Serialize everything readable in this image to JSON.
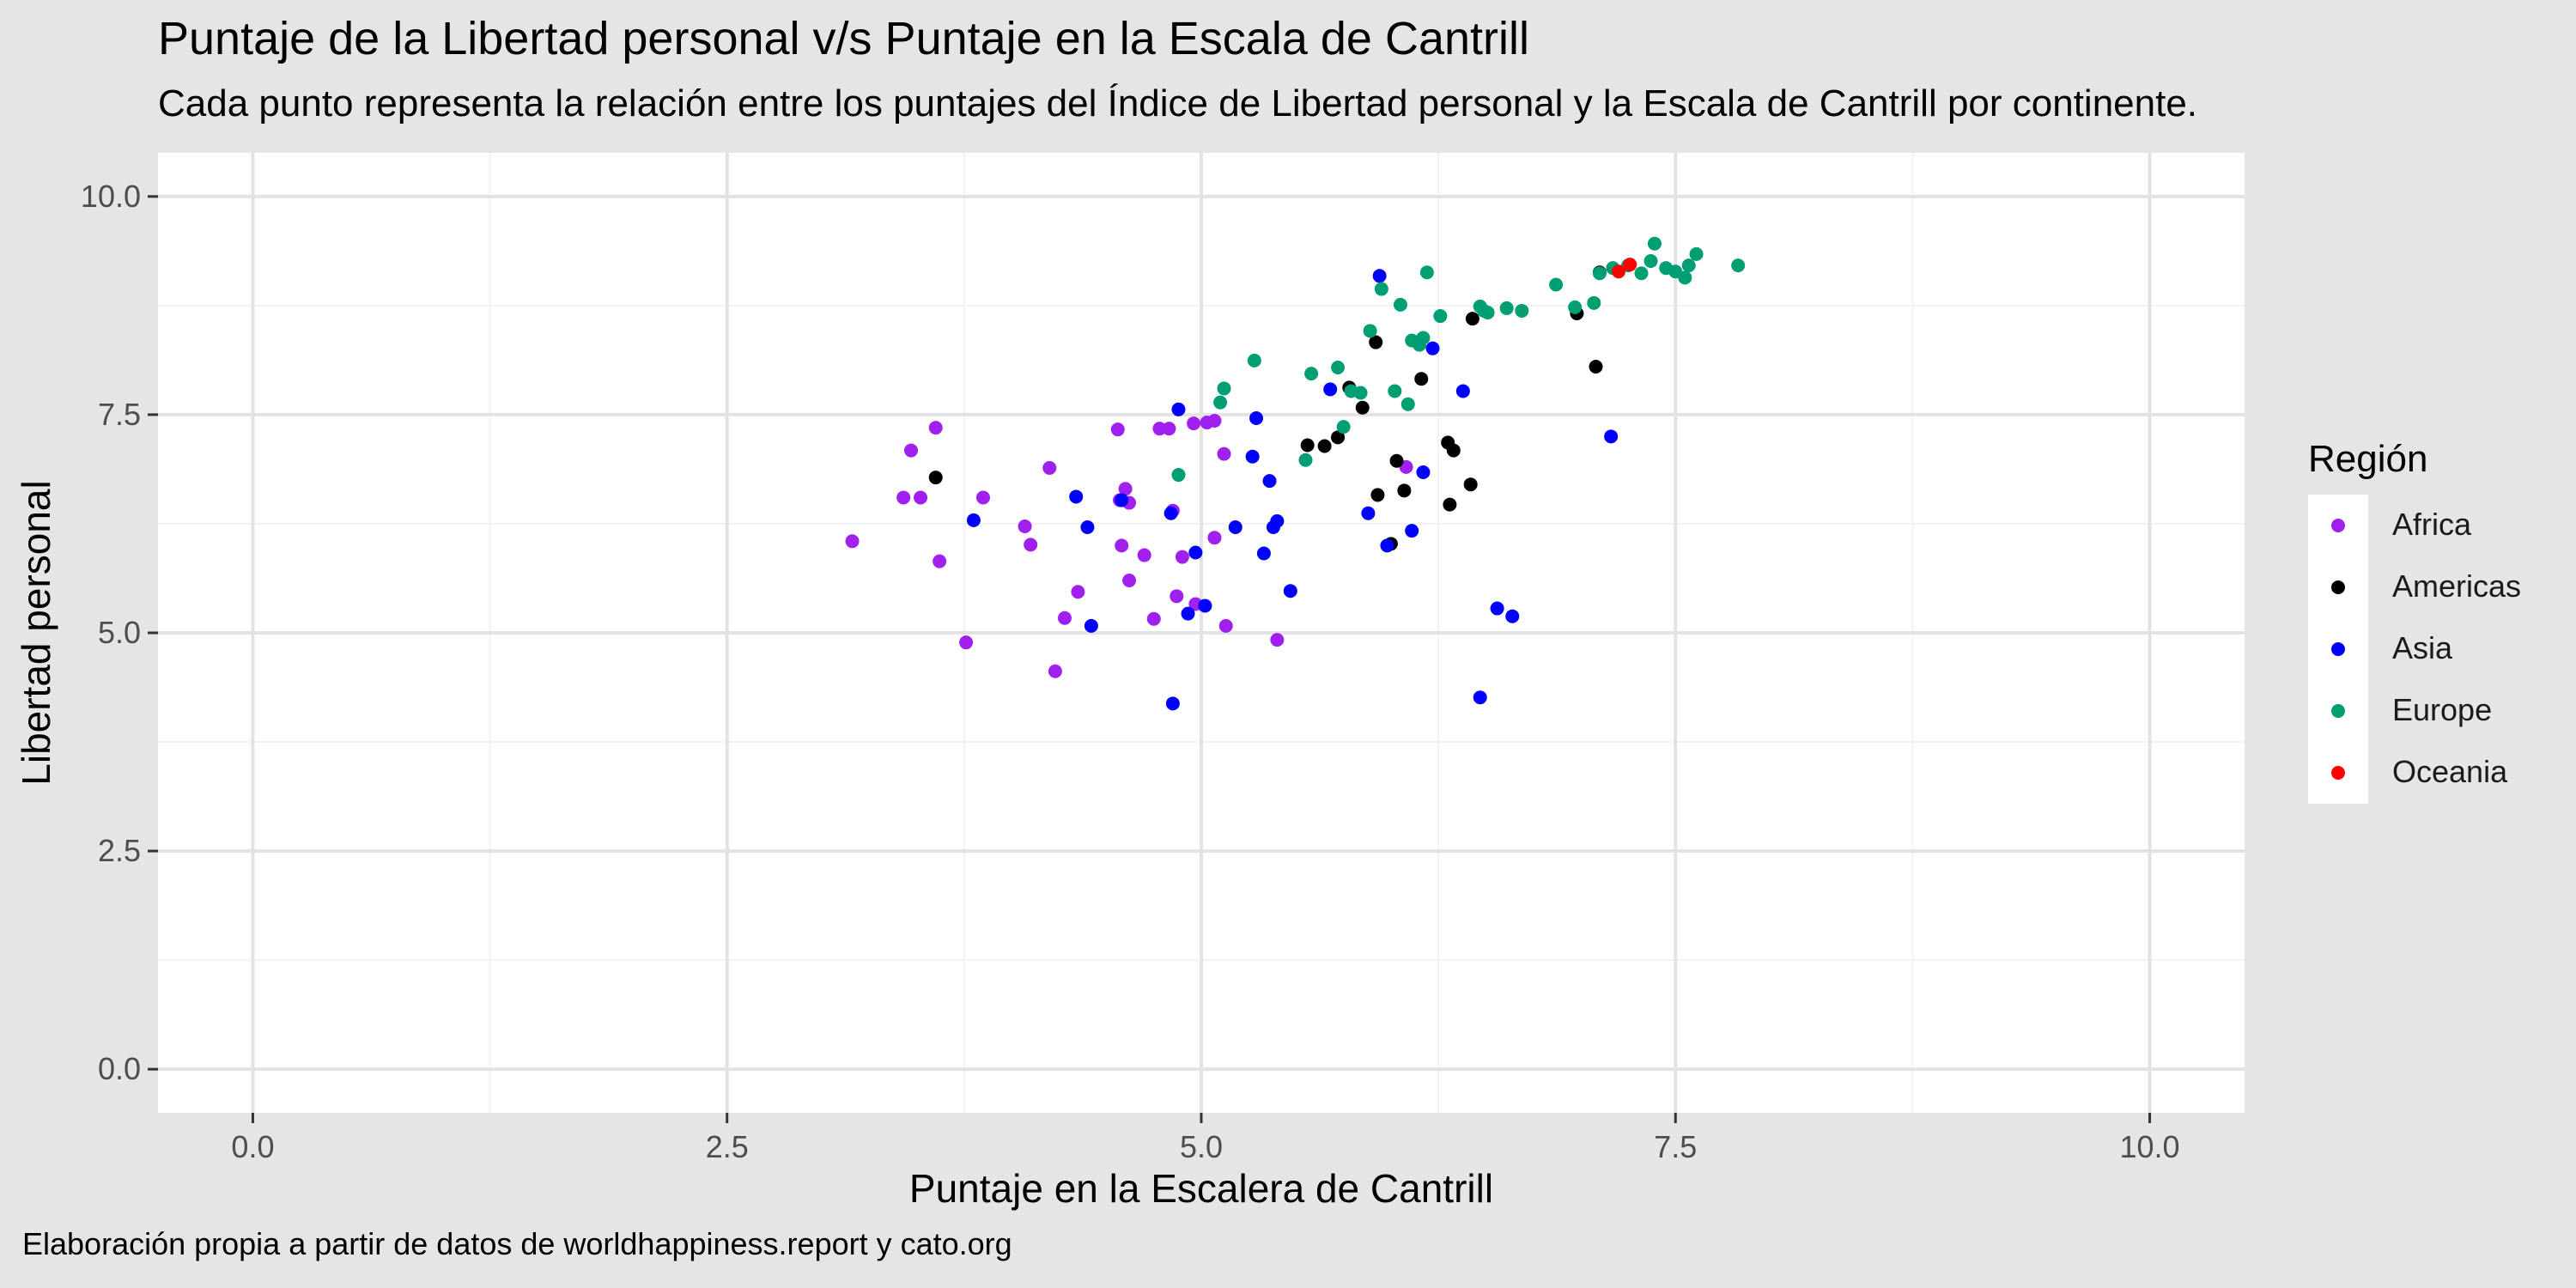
{
  "chart_data": {
    "type": "scatter",
    "title": "Puntaje de la Libertad personal v/s Puntaje en la Escala de Cantrill",
    "subtitle": "Cada punto representa la relación entre los puntajes del Índice de Libertad personal y la Escala de Cantrill por continente.",
    "caption": "Elaboración propia a partir de datos de worldhappiness.report y cato.org",
    "xlabel": "Puntaje en la Escalera de Cantrill",
    "ylabel": "Libertad personal",
    "xlim": [
      -0.5,
      10.5
    ],
    "ylim": [
      -0.5,
      10.5
    ],
    "x_ticks": [
      "0.0",
      "2.5",
      "5.0",
      "7.5",
      "10.0"
    ],
    "y_ticks": [
      "0.0",
      "2.5",
      "5.0",
      "7.5",
      "10.0"
    ],
    "grid": true,
    "background": "#e5e5e5",
    "panel_color": "#ffffff",
    "legend": {
      "title": "Región",
      "placement": "right"
    },
    "series": [
      {
        "name": "Africa",
        "color": "#a020f0",
        "points": [
          [
            3.16,
            6.05
          ],
          [
            3.43,
            6.55
          ],
          [
            3.47,
            7.09
          ],
          [
            3.52,
            6.55
          ],
          [
            3.6,
            7.35
          ],
          [
            3.62,
            5.82
          ],
          [
            3.76,
            4.89
          ],
          [
            3.85,
            6.55
          ],
          [
            4.07,
            6.22
          ],
          [
            4.1,
            6.01
          ],
          [
            4.2,
            6.89
          ],
          [
            4.23,
            4.56
          ],
          [
            4.28,
            5.17
          ],
          [
            4.35,
            5.47
          ],
          [
            4.56,
            7.33
          ],
          [
            4.57,
            6.52
          ],
          [
            4.58,
            6.0
          ],
          [
            4.6,
            6.65
          ],
          [
            4.62,
            6.49
          ],
          [
            4.62,
            5.6
          ],
          [
            4.7,
            5.89
          ],
          [
            4.75,
            5.16
          ],
          [
            4.78,
            7.34
          ],
          [
            4.83,
            7.34
          ],
          [
            4.85,
            6.4
          ],
          [
            4.87,
            5.42
          ],
          [
            4.9,
            5.87
          ],
          [
            4.96,
            7.4
          ],
          [
            4.97,
            5.33
          ],
          [
            5.03,
            7.41
          ],
          [
            5.07,
            7.43
          ],
          [
            5.07,
            6.09
          ],
          [
            5.12,
            7.05
          ],
          [
            5.13,
            5.08
          ],
          [
            5.4,
            4.92
          ],
          [
            6.08,
            6.9
          ]
        ]
      },
      {
        "name": "Americas",
        "color": "#000000",
        "points": [
          [
            3.6,
            6.78
          ],
          [
            5.56,
            7.15
          ],
          [
            5.65,
            7.14
          ],
          [
            5.72,
            7.24
          ],
          [
            5.78,
            7.81
          ],
          [
            5.85,
            7.58
          ],
          [
            5.92,
            8.33
          ],
          [
            5.93,
            6.58
          ],
          [
            6.0,
            6.02
          ],
          [
            6.03,
            6.97
          ],
          [
            6.07,
            6.63
          ],
          [
            6.16,
            7.91
          ],
          [
            6.3,
            7.18
          ],
          [
            6.31,
            6.47
          ],
          [
            6.33,
            7.09
          ],
          [
            6.42,
            6.7
          ],
          [
            6.43,
            8.6
          ],
          [
            6.98,
            8.66
          ],
          [
            7.08,
            8.05
          ],
          [
            7.1,
            9.13
          ]
        ]
      },
      {
        "name": "Asia",
        "color": "#0000ff",
        "points": [
          [
            3.8,
            6.29
          ],
          [
            4.34,
            6.56
          ],
          [
            4.4,
            6.21
          ],
          [
            4.42,
            5.08
          ],
          [
            4.58,
            6.52
          ],
          [
            4.84,
            6.37
          ],
          [
            4.85,
            4.19
          ],
          [
            4.88,
            7.56
          ],
          [
            4.93,
            5.22
          ],
          [
            4.97,
            5.92
          ],
          [
            5.02,
            5.31
          ],
          [
            5.18,
            6.21
          ],
          [
            5.27,
            7.02
          ],
          [
            5.29,
            7.46
          ],
          [
            5.33,
            5.91
          ],
          [
            5.36,
            6.74
          ],
          [
            5.38,
            6.21
          ],
          [
            5.4,
            6.28
          ],
          [
            5.47,
            5.48
          ],
          [
            5.68,
            7.79
          ],
          [
            5.88,
            6.37
          ],
          [
            5.94,
            9.09
          ],
          [
            5.98,
            6.0
          ],
          [
            6.11,
            6.17
          ],
          [
            6.17,
            6.84
          ],
          [
            6.22,
            8.26
          ],
          [
            6.38,
            7.77
          ],
          [
            6.47,
            4.26
          ],
          [
            6.56,
            5.28
          ],
          [
            6.64,
            5.19
          ],
          [
            7.16,
            7.25
          ]
        ]
      },
      {
        "name": "Europe",
        "color": "#009e73",
        "points": [
          [
            4.88,
            6.81
          ],
          [
            5.1,
            7.64
          ],
          [
            5.12,
            7.8
          ],
          [
            5.28,
            8.12
          ],
          [
            5.55,
            6.98
          ],
          [
            5.58,
            7.97
          ],
          [
            5.72,
            8.04
          ],
          [
            5.75,
            7.36
          ],
          [
            5.79,
            7.77
          ],
          [
            5.84,
            7.75
          ],
          [
            5.89,
            8.46
          ],
          [
            5.95,
            8.94
          ],
          [
            6.02,
            7.77
          ],
          [
            6.05,
            8.76
          ],
          [
            6.09,
            7.62
          ],
          [
            6.11,
            8.35
          ],
          [
            6.15,
            8.3
          ],
          [
            6.17,
            8.38
          ],
          [
            6.19,
            9.13
          ],
          [
            6.26,
            8.63
          ],
          [
            6.47,
            8.74
          ],
          [
            6.49,
            8.69
          ],
          [
            6.51,
            8.67
          ],
          [
            6.61,
            8.72
          ],
          [
            6.69,
            8.69
          ],
          [
            6.87,
            8.99
          ],
          [
            6.97,
            8.73
          ],
          [
            7.07,
            8.78
          ],
          [
            7.1,
            9.12
          ],
          [
            7.17,
            9.18
          ],
          [
            7.25,
            9.21
          ],
          [
            7.32,
            9.12
          ],
          [
            7.37,
            9.26
          ],
          [
            7.39,
            9.46
          ],
          [
            7.45,
            9.18
          ],
          [
            7.5,
            9.14
          ],
          [
            7.55,
            9.07
          ],
          [
            7.57,
            9.21
          ],
          [
            7.61,
            9.34
          ],
          [
            7.83,
            9.21
          ]
        ]
      },
      {
        "name": "Oceania",
        "color": "#ff0000",
        "points": [
          [
            7.2,
            9.14
          ],
          [
            7.26,
            9.22
          ]
        ]
      }
    ]
  }
}
